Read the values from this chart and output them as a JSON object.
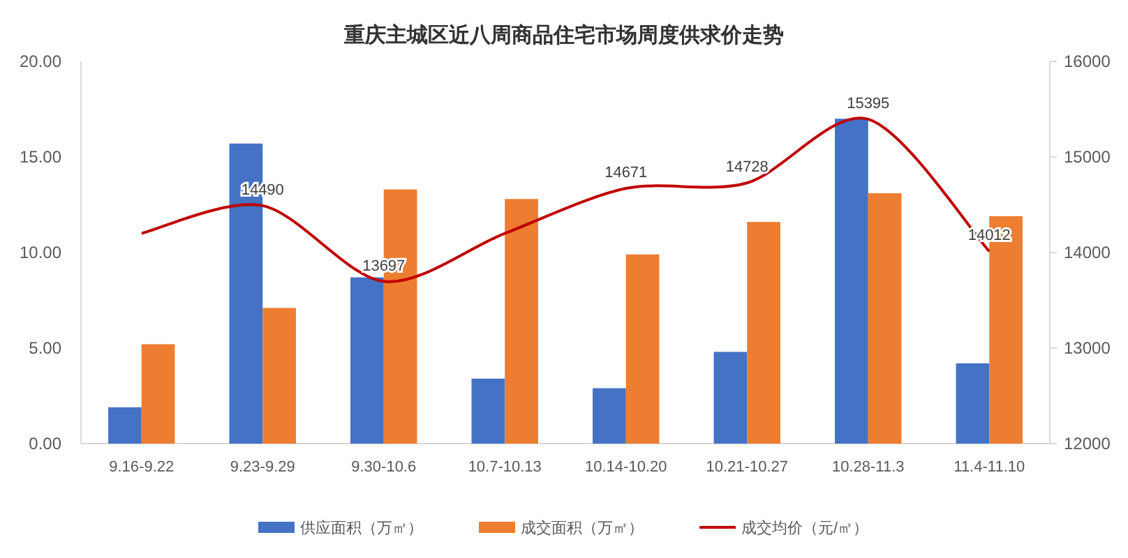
{
  "chart_data": {
    "type": "bar",
    "title": "重庆主城区近八周商品住宅市场周度供求价走势",
    "categories": [
      "9.16-9.22",
      "9.23-9.29",
      "9.30-10.6",
      "10.7-10.13",
      "10.14-10.20",
      "10.21-10.27",
      "10.28-11.3",
      "11.4-11.10"
    ],
    "series": [
      {
        "name": "供应面积（万㎡）",
        "color": "#4472c4",
        "values": [
          1.9,
          15.7,
          8.7,
          3.4,
          2.9,
          4.8,
          17.0,
          4.2
        ]
      },
      {
        "name": "成交面积（万㎡）",
        "color": "#ed7d31",
        "values": [
          5.2,
          7.1,
          13.3,
          12.8,
          9.9,
          11.6,
          13.1,
          11.9
        ]
      },
      {
        "name": "成交均价（元/㎡）",
        "color": "#c00000",
        "type": "line",
        "axis": "y2",
        "values": [
          14200,
          14490,
          13697,
          14200,
          14671,
          14728,
          15395,
          14012
        ],
        "value_labels": [
          null,
          "14490",
          "13697",
          null,
          "14671",
          "14728",
          "15395",
          "14012"
        ]
      }
    ],
    "ylim": [
      0,
      20
    ],
    "yticks": [
      {
        "value": 0,
        "label": "0.00"
      },
      {
        "value": 5,
        "label": "5.00"
      },
      {
        "value": 10,
        "label": "10.00"
      },
      {
        "value": 15,
        "label": "15.00"
      },
      {
        "value": 20,
        "label": "20.00"
      }
    ],
    "y2lim": [
      12000,
      16000
    ],
    "y2ticks": [
      12000,
      13000,
      14000,
      15000,
      16000
    ],
    "grid": false,
    "legend": "bottom"
  }
}
